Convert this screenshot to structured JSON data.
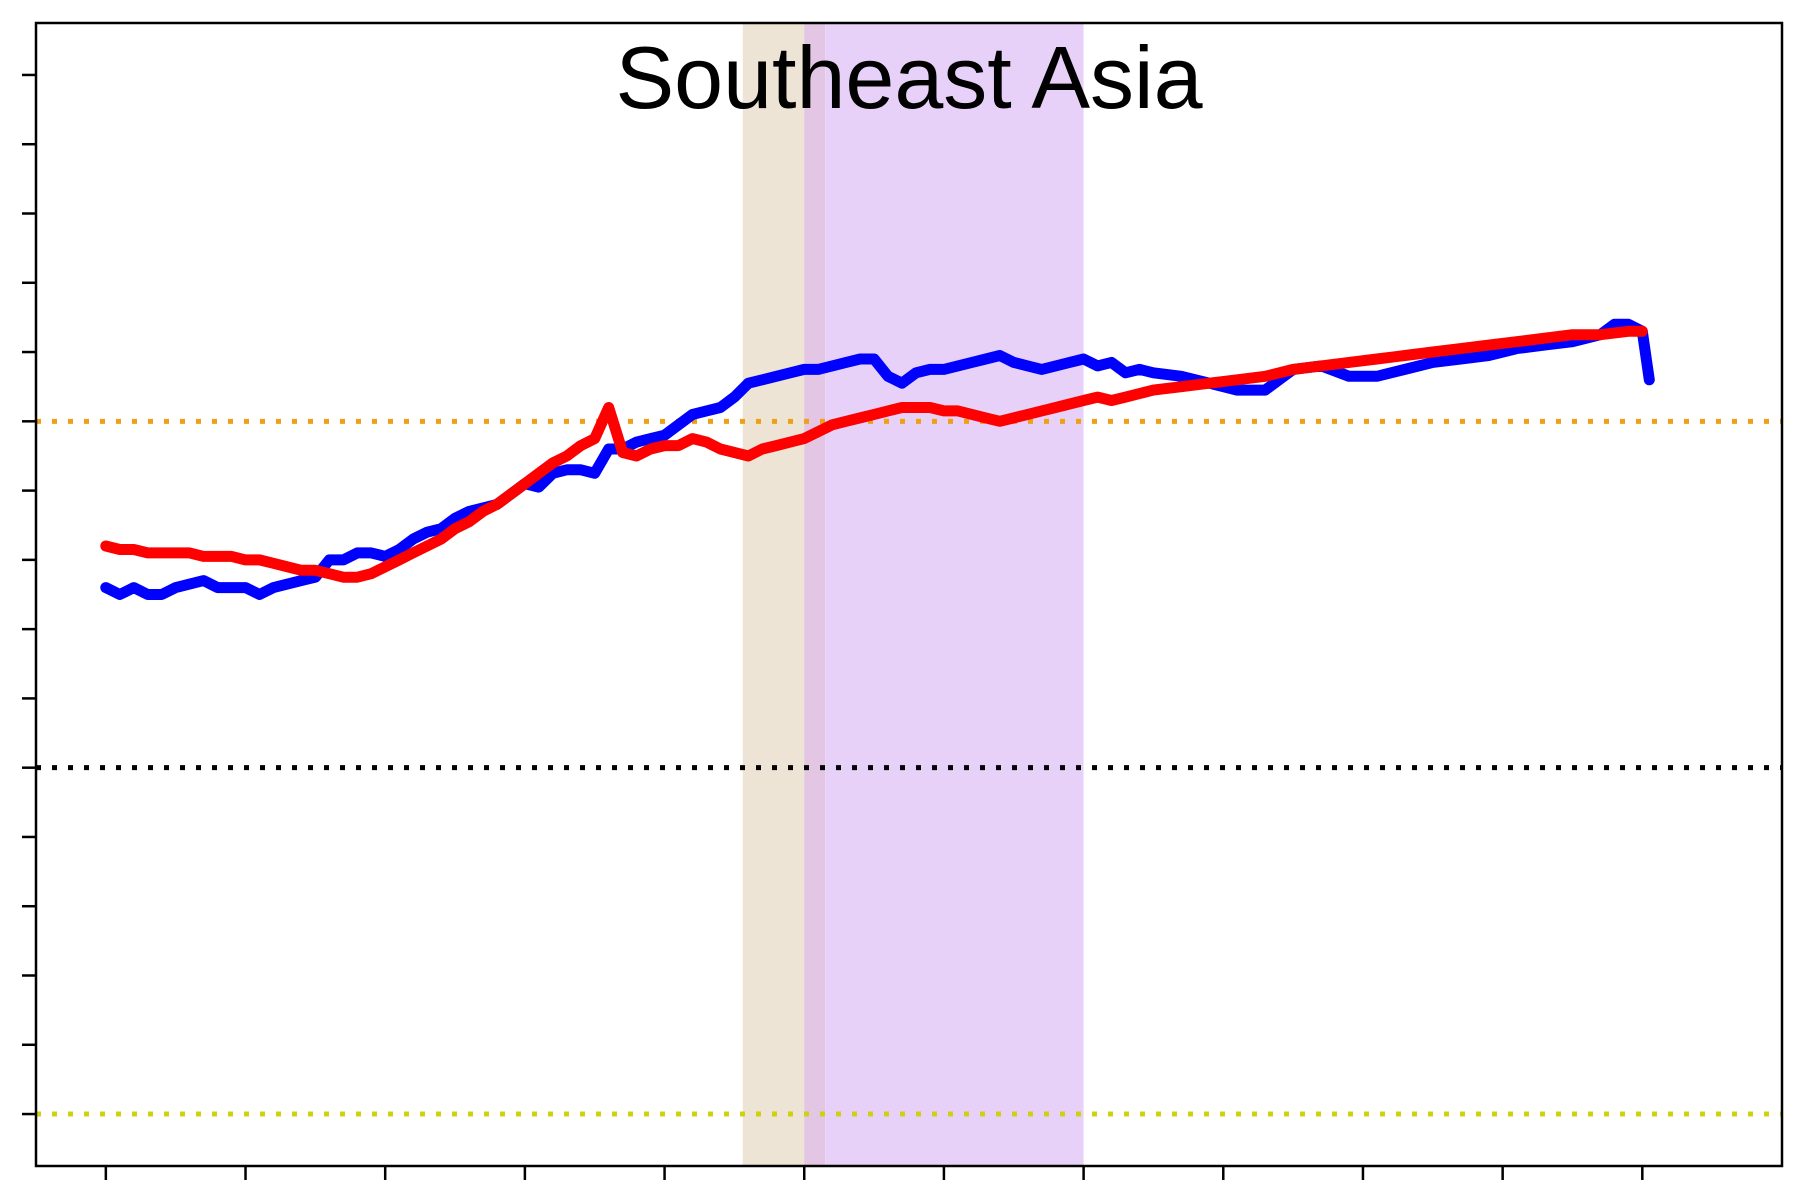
{
  "chart_data": {
    "type": "line",
    "title": "Southeast Asia",
    "xlabel": "",
    "ylabel": "",
    "xlim": [
      0,
      12.5
    ],
    "ylim": [
      -0.75,
      15.75
    ],
    "x_ticks": [
      0.5,
      1.5,
      2.5,
      3.5,
      4.5,
      5.5,
      6.5,
      7.5,
      8.5,
      9.5,
      10.5,
      11.5
    ],
    "y_ticks": [
      0,
      1,
      2,
      3,
      4,
      5,
      6,
      7,
      8,
      9,
      10,
      11,
      12,
      13,
      14,
      15
    ],
    "grid": false,
    "legend": "none",
    "shaded_regions": [
      {
        "name": "tan-band",
        "x_start": 5.06,
        "x_end": 5.5,
        "color": "#ede4d5"
      },
      {
        "name": "overlap-band",
        "x_start": 5.5,
        "x_end": 5.65,
        "color": "#e3c6e3"
      },
      {
        "name": "violet-band",
        "x_start": 5.65,
        "x_end": 7.5,
        "color": "#e8d1f8"
      }
    ],
    "reference_lines": [
      {
        "name": "orange-reference-line",
        "y": 10,
        "color": "#f0a014"
      },
      {
        "name": "black-reference-line",
        "y": 5,
        "color": "#000000"
      },
      {
        "name": "yellow-reference-line",
        "y": 0,
        "color": "#d0d010"
      }
    ],
    "series": [
      {
        "name": "blue",
        "color": "#0000ff",
        "x": [
          0.5,
          0.6,
          0.7,
          0.8,
          0.9,
          1.0,
          1.1,
          1.2,
          1.3,
          1.4,
          1.5,
          1.6,
          1.7,
          1.8,
          1.9,
          2.0,
          2.1,
          2.2,
          2.3,
          2.4,
          2.5,
          2.6,
          2.7,
          2.8,
          2.9,
          3.0,
          3.1,
          3.2,
          3.3,
          3.4,
          3.5,
          3.6,
          3.7,
          3.8,
          3.9,
          4.0,
          4.1,
          4.2,
          4.3,
          4.4,
          4.5,
          4.6,
          4.7,
          4.8,
          4.9,
          5.0,
          5.1,
          5.2,
          5.3,
          5.4,
          5.5,
          5.6,
          5.7,
          5.8,
          5.9,
          6.0,
          6.1,
          6.2,
          6.3,
          6.4,
          6.5,
          6.6,
          6.7,
          6.8,
          6.9,
          7.0,
          7.1,
          7.2,
          7.3,
          7.4,
          7.5,
          7.6,
          7.7,
          7.8,
          7.9,
          8.0,
          8.2,
          8.4,
          8.6,
          8.8,
          9.0,
          9.2,
          9.4,
          9.6,
          9.8,
          10.0,
          10.2,
          10.4,
          10.6,
          10.8,
          11.0,
          11.1,
          11.2,
          11.3,
          11.4,
          11.5,
          11.55
        ],
        "values": [
          7.6,
          7.5,
          7.6,
          7.5,
          7.5,
          7.6,
          7.65,
          7.7,
          7.6,
          7.6,
          7.6,
          7.5,
          7.6,
          7.65,
          7.7,
          7.75,
          8.0,
          8.0,
          8.1,
          8.1,
          8.05,
          8.15,
          8.3,
          8.4,
          8.45,
          8.6,
          8.7,
          8.75,
          8.8,
          8.95,
          9.1,
          9.05,
          9.25,
          9.3,
          9.3,
          9.25,
          9.6,
          9.6,
          9.7,
          9.75,
          9.8,
          9.95,
          10.1,
          10.15,
          10.2,
          10.35,
          10.55,
          10.6,
          10.65,
          10.7,
          10.75,
          10.75,
          10.8,
          10.85,
          10.9,
          10.9,
          10.65,
          10.55,
          10.7,
          10.75,
          10.75,
          10.8,
          10.85,
          10.9,
          10.95,
          10.85,
          10.8,
          10.75,
          10.8,
          10.85,
          10.9,
          10.8,
          10.85,
          10.7,
          10.75,
          10.7,
          10.65,
          10.55,
          10.45,
          10.45,
          10.75,
          10.8,
          10.65,
          10.65,
          10.75,
          10.85,
          10.9,
          10.95,
          11.05,
          11.1,
          11.15,
          11.2,
          11.25,
          11.4,
          11.4,
          11.3,
          10.6
        ]
      },
      {
        "name": "red",
        "color": "#ff0000",
        "x": [
          0.5,
          0.6,
          0.7,
          0.8,
          0.9,
          1.0,
          1.1,
          1.2,
          1.3,
          1.4,
          1.5,
          1.6,
          1.7,
          1.8,
          1.9,
          2.0,
          2.1,
          2.2,
          2.3,
          2.4,
          2.5,
          2.6,
          2.7,
          2.8,
          2.9,
          3.0,
          3.1,
          3.2,
          3.3,
          3.4,
          3.5,
          3.6,
          3.7,
          3.8,
          3.9,
          4.0,
          4.1,
          4.2,
          4.3,
          4.4,
          4.5,
          4.6,
          4.7,
          4.8,
          4.9,
          5.0,
          5.1,
          5.2,
          5.3,
          5.4,
          5.5,
          5.6,
          5.7,
          5.8,
          5.9,
          6.0,
          6.1,
          6.2,
          6.3,
          6.4,
          6.5,
          6.6,
          6.7,
          6.8,
          6.9,
          7.0,
          7.1,
          7.2,
          7.3,
          7.4,
          7.5,
          7.6,
          7.7,
          7.8,
          7.9,
          8.0,
          8.2,
          8.4,
          8.6,
          8.8,
          9.0,
          9.2,
          9.4,
          9.6,
          9.8,
          10.0,
          10.2,
          10.4,
          10.6,
          10.8,
          11.0,
          11.2,
          11.4,
          11.5
        ],
        "values": [
          8.2,
          8.15,
          8.15,
          8.1,
          8.1,
          8.1,
          8.1,
          8.05,
          8.05,
          8.05,
          8.0,
          8.0,
          7.95,
          7.9,
          7.85,
          7.85,
          7.8,
          7.75,
          7.75,
          7.8,
          7.9,
          8.0,
          8.1,
          8.2,
          8.3,
          8.45,
          8.55,
          8.7,
          8.8,
          8.95,
          9.1,
          9.25,
          9.4,
          9.5,
          9.65,
          9.75,
          10.2,
          9.55,
          9.5,
          9.6,
          9.65,
          9.65,
          9.75,
          9.7,
          9.6,
          9.55,
          9.5,
          9.6,
          9.65,
          9.7,
          9.75,
          9.85,
          9.95,
          10.0,
          10.05,
          10.1,
          10.15,
          10.2,
          10.2,
          10.2,
          10.15,
          10.15,
          10.1,
          10.05,
          10.0,
          10.05,
          10.1,
          10.15,
          10.2,
          10.25,
          10.3,
          10.35,
          10.3,
          10.35,
          10.4,
          10.45,
          10.5,
          10.55,
          10.6,
          10.65,
          10.75,
          10.8,
          10.85,
          10.9,
          10.95,
          11.0,
          11.05,
          11.1,
          11.15,
          11.2,
          11.25,
          11.25,
          11.3,
          11.3
        ]
      }
    ]
  }
}
